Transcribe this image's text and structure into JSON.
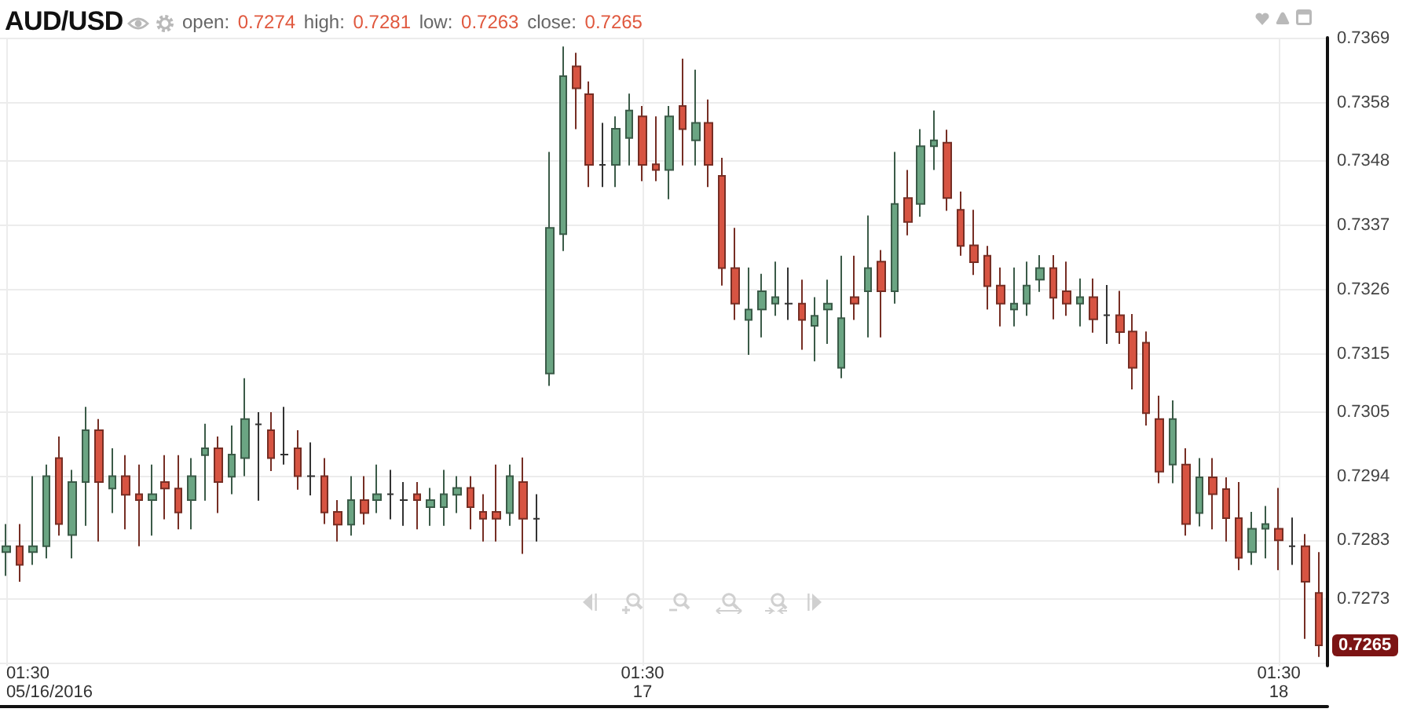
{
  "chart_data": {
    "type": "candlestick",
    "title": "AUD/USD",
    "subtitle": "open: 0.7274 high: 0.7281 low: 0.7263 close: 0.7265",
    "annotations": [
      {
        "text": "0.7265",
        "x": "2016-05-18T03:00",
        "y": 0.7265
      }
    ],
    "x": [
      "2016-05-16T01:30",
      "2016-05-16T02:00",
      "2016-05-16T02:30",
      "2016-05-16T03:00",
      "2016-05-16T03:30",
      "2016-05-16T04:00",
      "2016-05-16T04:30",
      "2016-05-16T05:00",
      "2016-05-16T05:30",
      "2016-05-16T06:00",
      "2016-05-16T06:30",
      "2016-05-16T07:00",
      "2016-05-16T07:30",
      "2016-05-16T08:00",
      "2016-05-16T08:30",
      "2016-05-16T09:00",
      "2016-05-16T09:30",
      "2016-05-16T10:00",
      "2016-05-16T10:30",
      "2016-05-16T11:00",
      "2016-05-16T11:30",
      "2016-05-16T12:00",
      "2016-05-16T12:30",
      "2016-05-16T13:00",
      "2016-05-16T13:30",
      "2016-05-16T14:00",
      "2016-05-16T14:30",
      "2016-05-16T15:00",
      "2016-05-16T15:30",
      "2016-05-16T16:00",
      "2016-05-16T16:30",
      "2016-05-16T17:00",
      "2016-05-16T17:30",
      "2016-05-16T18:00",
      "2016-05-16T18:30",
      "2016-05-16T19:00",
      "2016-05-16T19:30",
      "2016-05-16T20:00",
      "2016-05-16T20:30",
      "2016-05-16T21:00",
      "2016-05-16T21:30",
      "2016-05-16T22:00",
      "2016-05-16T22:30",
      "2016-05-16T23:00",
      "2016-05-16T23:30",
      "2016-05-17T00:00",
      "2016-05-17T00:30",
      "2016-05-17T01:00",
      "2016-05-17T01:30",
      "2016-05-17T02:00",
      "2016-05-17T02:30",
      "2016-05-17T03:00",
      "2016-05-17T03:30",
      "2016-05-17T04:00",
      "2016-05-17T04:30",
      "2016-05-17T05:00",
      "2016-05-17T05:30",
      "2016-05-17T06:00",
      "2016-05-17T06:30",
      "2016-05-17T07:00",
      "2016-05-17T07:30",
      "2016-05-17T08:00",
      "2016-05-17T08:30",
      "2016-05-17T09:00",
      "2016-05-17T09:30",
      "2016-05-17T10:00",
      "2016-05-17T10:30",
      "2016-05-17T11:00",
      "2016-05-17T11:30",
      "2016-05-17T12:00",
      "2016-05-17T12:30",
      "2016-05-17T13:00",
      "2016-05-17T13:30",
      "2016-05-17T14:00",
      "2016-05-17T14:30",
      "2016-05-17T15:00",
      "2016-05-17T15:30",
      "2016-05-17T16:00",
      "2016-05-17T16:30",
      "2016-05-17T17:00",
      "2016-05-17T17:30",
      "2016-05-17T18:00",
      "2016-05-17T18:30",
      "2016-05-17T19:00",
      "2016-05-17T19:30",
      "2016-05-17T20:00",
      "2016-05-17T20:30",
      "2016-05-17T21:00",
      "2016-05-17T21:30",
      "2016-05-17T22:00",
      "2016-05-17T22:30",
      "2016-05-17T23:00",
      "2016-05-17T23:30",
      "2016-05-18T00:00",
      "2016-05-18T00:30",
      "2016-05-18T01:00",
      "2016-05-18T01:30",
      "2016-05-18T02:00",
      "2016-05-18T02:30",
      "2016-05-18T03:00"
    ],
    "ohlc": [
      [
        0.7281,
        0.72858,
        0.72769,
        0.7282
      ],
      [
        0.7282,
        0.72858,
        0.72759,
        0.72788
      ],
      [
        0.7281,
        0.7294,
        0.72788,
        0.7282
      ],
      [
        0.7282,
        0.7296,
        0.72799,
        0.7294
      ],
      [
        0.72971,
        0.73008,
        0.72838,
        0.72858
      ],
      [
        0.72839,
        0.72951,
        0.72799,
        0.7293
      ],
      [
        0.7293,
        0.73059,
        0.72855,
        0.73019
      ],
      [
        0.73019,
        0.73038,
        0.72828,
        0.7293
      ],
      [
        0.72919,
        0.72988,
        0.72877,
        0.7294
      ],
      [
        0.7294,
        0.72976,
        0.72849,
        0.72908
      ],
      [
        0.72909,
        0.7296,
        0.7282,
        0.72899
      ],
      [
        0.72899,
        0.7296,
        0.72838,
        0.72909
      ],
      [
        0.7293,
        0.72976,
        0.72866,
        0.72919
      ],
      [
        0.72919,
        0.72976,
        0.72849,
        0.72878
      ],
      [
        0.72899,
        0.72971,
        0.72849,
        0.7294
      ],
      [
        0.72976,
        0.7303,
        0.72898,
        0.72988
      ],
      [
        0.72988,
        0.73008,
        0.72877,
        0.7293
      ],
      [
        0.72939,
        0.73027,
        0.72909,
        0.72977
      ],
      [
        0.72971,
        0.73108,
        0.7294,
        0.73038
      ],
      [
        0.73029,
        0.7305,
        0.72898,
        0.73029
      ],
      [
        0.73019,
        0.7305,
        0.72949,
        0.72971
      ],
      [
        0.72977,
        0.73059,
        0.7296,
        0.72977
      ],
      [
        0.72988,
        0.73019,
        0.72917,
        0.7294
      ],
      [
        0.7294,
        0.72998,
        0.72907,
        0.7294
      ],
      [
        0.7294,
        0.72971,
        0.72858,
        0.72878
      ],
      [
        0.72879,
        0.72899,
        0.72828,
        0.72857
      ],
      [
        0.72857,
        0.7294,
        0.72838,
        0.72899
      ],
      [
        0.72899,
        0.7294,
        0.72857,
        0.72877
      ],
      [
        0.72899,
        0.7296,
        0.72877,
        0.72909
      ],
      [
        0.72909,
        0.72951,
        0.72866,
        0.72909
      ],
      [
        0.72899,
        0.7293,
        0.72855,
        0.72899
      ],
      [
        0.72909,
        0.7293,
        0.72849,
        0.72899
      ],
      [
        0.72887,
        0.7292,
        0.72855,
        0.72899
      ],
      [
        0.72887,
        0.72951,
        0.72855,
        0.72909
      ],
      [
        0.72908,
        0.7294,
        0.72877,
        0.7292
      ],
      [
        0.7292,
        0.7294,
        0.72849,
        0.72887
      ],
      [
        0.72879,
        0.72909,
        0.72828,
        0.72867
      ],
      [
        0.72879,
        0.7296,
        0.72828,
        0.72867
      ],
      [
        0.72877,
        0.7296,
        0.72855,
        0.7294
      ],
      [
        0.7293,
        0.72972,
        0.72807,
        0.72867
      ],
      [
        0.72867,
        0.72909,
        0.72828,
        0.72867
      ],
      [
        0.73116,
        0.73496,
        0.73095,
        0.73366
      ],
      [
        0.73355,
        0.73677,
        0.73326,
        0.73626
      ],
      [
        0.73643,
        0.73666,
        0.73535,
        0.73605
      ],
      [
        0.73595,
        0.73617,
        0.73436,
        0.73474
      ],
      [
        0.73474,
        0.73546,
        0.73436,
        0.73474
      ],
      [
        0.73474,
        0.73557,
        0.73436,
        0.73536
      ],
      [
        0.7352,
        0.73596,
        0.73473,
        0.73567
      ],
      [
        0.73557,
        0.73575,
        0.73446,
        0.73474
      ],
      [
        0.73475,
        0.73557,
        0.73446,
        0.73465
      ],
      [
        0.73465,
        0.73575,
        0.73415,
        0.73557
      ],
      [
        0.73575,
        0.73656,
        0.73473,
        0.73535
      ],
      [
        0.73516,
        0.73637,
        0.73473,
        0.73546
      ],
      [
        0.73546,
        0.73586,
        0.73436,
        0.73474
      ],
      [
        0.73455,
        0.73486,
        0.73267,
        0.73297
      ],
      [
        0.73297,
        0.73366,
        0.73208,
        0.73236
      ],
      [
        0.73208,
        0.73298,
        0.73148,
        0.73226
      ],
      [
        0.73226,
        0.73287,
        0.73178,
        0.73257
      ],
      [
        0.73236,
        0.73308,
        0.73215,
        0.73247
      ],
      [
        0.73236,
        0.73298,
        0.73208,
        0.73236
      ],
      [
        0.73236,
        0.73277,
        0.73157,
        0.73208
      ],
      [
        0.73198,
        0.73247,
        0.73137,
        0.73215
      ],
      [
        0.73226,
        0.73277,
        0.73167,
        0.73236
      ],
      [
        0.73126,
        0.73318,
        0.73108,
        0.73211
      ],
      [
        0.73247,
        0.73318,
        0.73208,
        0.73236
      ],
      [
        0.73257,
        0.73387,
        0.73178,
        0.73297
      ],
      [
        0.73308,
        0.73328,
        0.73178,
        0.73257
      ],
      [
        0.73257,
        0.73496,
        0.73236,
        0.73407
      ],
      [
        0.73417,
        0.73465,
        0.73353,
        0.73376
      ],
      [
        0.73407,
        0.73535,
        0.73385,
        0.73506
      ],
      [
        0.73506,
        0.73567,
        0.73465,
        0.73516
      ],
      [
        0.73512,
        0.73534,
        0.73395,
        0.73417
      ],
      [
        0.73397,
        0.73428,
        0.73318,
        0.73335
      ],
      [
        0.73336,
        0.73397,
        0.73285,
        0.73307
      ],
      [
        0.73318,
        0.73335,
        0.73226,
        0.73266
      ],
      [
        0.73267,
        0.73298,
        0.73197,
        0.73236
      ],
      [
        0.73226,
        0.73298,
        0.73197,
        0.73236
      ],
      [
        0.73236,
        0.73308,
        0.73215,
        0.73267
      ],
      [
        0.73277,
        0.73319,
        0.73256,
        0.73297
      ],
      [
        0.73297,
        0.73319,
        0.73209,
        0.73246
      ],
      [
        0.73257,
        0.73308,
        0.73215,
        0.73236
      ],
      [
        0.73236,
        0.73279,
        0.73197,
        0.73247
      ],
      [
        0.73247,
        0.73279,
        0.73186,
        0.73209
      ],
      [
        0.73216,
        0.73268,
        0.73167,
        0.73216
      ],
      [
        0.73216,
        0.73258,
        0.73167,
        0.73187
      ],
      [
        0.73188,
        0.73218,
        0.73089,
        0.73126
      ],
      [
        0.73169,
        0.73188,
        0.73027,
        0.73048
      ],
      [
        0.73038,
        0.73078,
        0.72928,
        0.72948
      ],
      [
        0.7296,
        0.7307,
        0.72928,
        0.73038
      ],
      [
        0.7296,
        0.72988,
        0.72838,
        0.72858
      ],
      [
        0.72877,
        0.72971,
        0.72854,
        0.72938
      ],
      [
        0.72938,
        0.72971,
        0.72849,
        0.72909
      ],
      [
        0.72918,
        0.72938,
        0.72828,
        0.72868
      ],
      [
        0.72868,
        0.7293,
        0.72779,
        0.728
      ],
      [
        0.7281,
        0.72879,
        0.72788,
        0.7285
      ],
      [
        0.7285,
        0.72889,
        0.72799,
        0.72858
      ],
      [
        0.7285,
        0.7292,
        0.72779,
        0.7283
      ],
      [
        0.7282,
        0.72869,
        0.72788,
        0.7282
      ],
      [
        0.7282,
        0.72841,
        0.72661,
        0.72759
      ],
      [
        0.7274,
        0.7281,
        0.7263,
        0.7265
      ]
    ],
    "colors": [
      "#6ba583",
      "#d75442",
      "#6ba583",
      "#6ba583",
      "#d75442",
      "#6ba583",
      "#6ba583",
      "#d75442",
      "#6ba583",
      "#d75442",
      "#d75442",
      "#6ba583",
      "#d75442",
      "#d75442",
      "#6ba583",
      "#6ba583",
      "#d75442",
      "#6ba583",
      "#6ba583",
      "#333333",
      "#d75442",
      "#333333",
      "#d75442",
      "#333333",
      "#d75442",
      "#d75442",
      "#6ba583",
      "#d75442",
      "#6ba583",
      "#333333",
      "#333333",
      "#d75442",
      "#6ba583",
      "#6ba583",
      "#6ba583",
      "#d75442",
      "#d75442",
      "#d75442",
      "#6ba583",
      "#d75442",
      "#333333",
      "#6ba583",
      "#6ba583",
      "#d75442",
      "#d75442",
      "#333333",
      "#6ba583",
      "#6ba583",
      "#d75442",
      "#d75442",
      "#6ba583",
      "#d75442",
      "#6ba583",
      "#d75442",
      "#d75442",
      "#d75442",
      "#6ba583",
      "#6ba583",
      "#6ba583",
      "#333333",
      "#d75442",
      "#6ba583",
      "#6ba583",
      "#6ba583",
      "#d75442",
      "#6ba583",
      "#d75442",
      "#6ba583",
      "#d75442",
      "#6ba583",
      "#6ba583",
      "#d75442",
      "#d75442",
      "#d75442",
      "#d75442",
      "#d75442",
      "#6ba583",
      "#6ba583",
      "#6ba583",
      "#d75442",
      "#d75442",
      "#6ba583",
      "#d75442",
      "#333333",
      "#d75442",
      "#d75442",
      "#d75442",
      "#d75442",
      "#6ba583",
      "#d75442",
      "#6ba583",
      "#d75442",
      "#d75442",
      "#d75442",
      "#6ba583",
      "#6ba583",
      "#d75442",
      "#333333",
      "#d75442",
      "#d75442"
    ],
    "xlim": [
      "2016-05-16T01:16",
      "2016-05-18T03:20"
    ],
    "xticks": [
      {
        "value": "2016-05-16T01:30",
        "label": "01:30\n05/16/2016"
      },
      {
        "value": "2016-05-17T01:30",
        "label": "01:30\n17"
      },
      {
        "value": "2016-05-18T01:30",
        "label": "01:30\n18"
      }
    ],
    "ylim": [
      0.72615,
      0.73692
    ],
    "yticks": [
      {
        "value": 0.7262,
        "label": null
      },
      0.7273,
      0.7283,
      0.7294,
      0.7305,
      0.7315,
      0.7326,
      0.7337,
      0.7348,
      0.7358,
      0.7369
    ],
    "grid": true
  }
}
